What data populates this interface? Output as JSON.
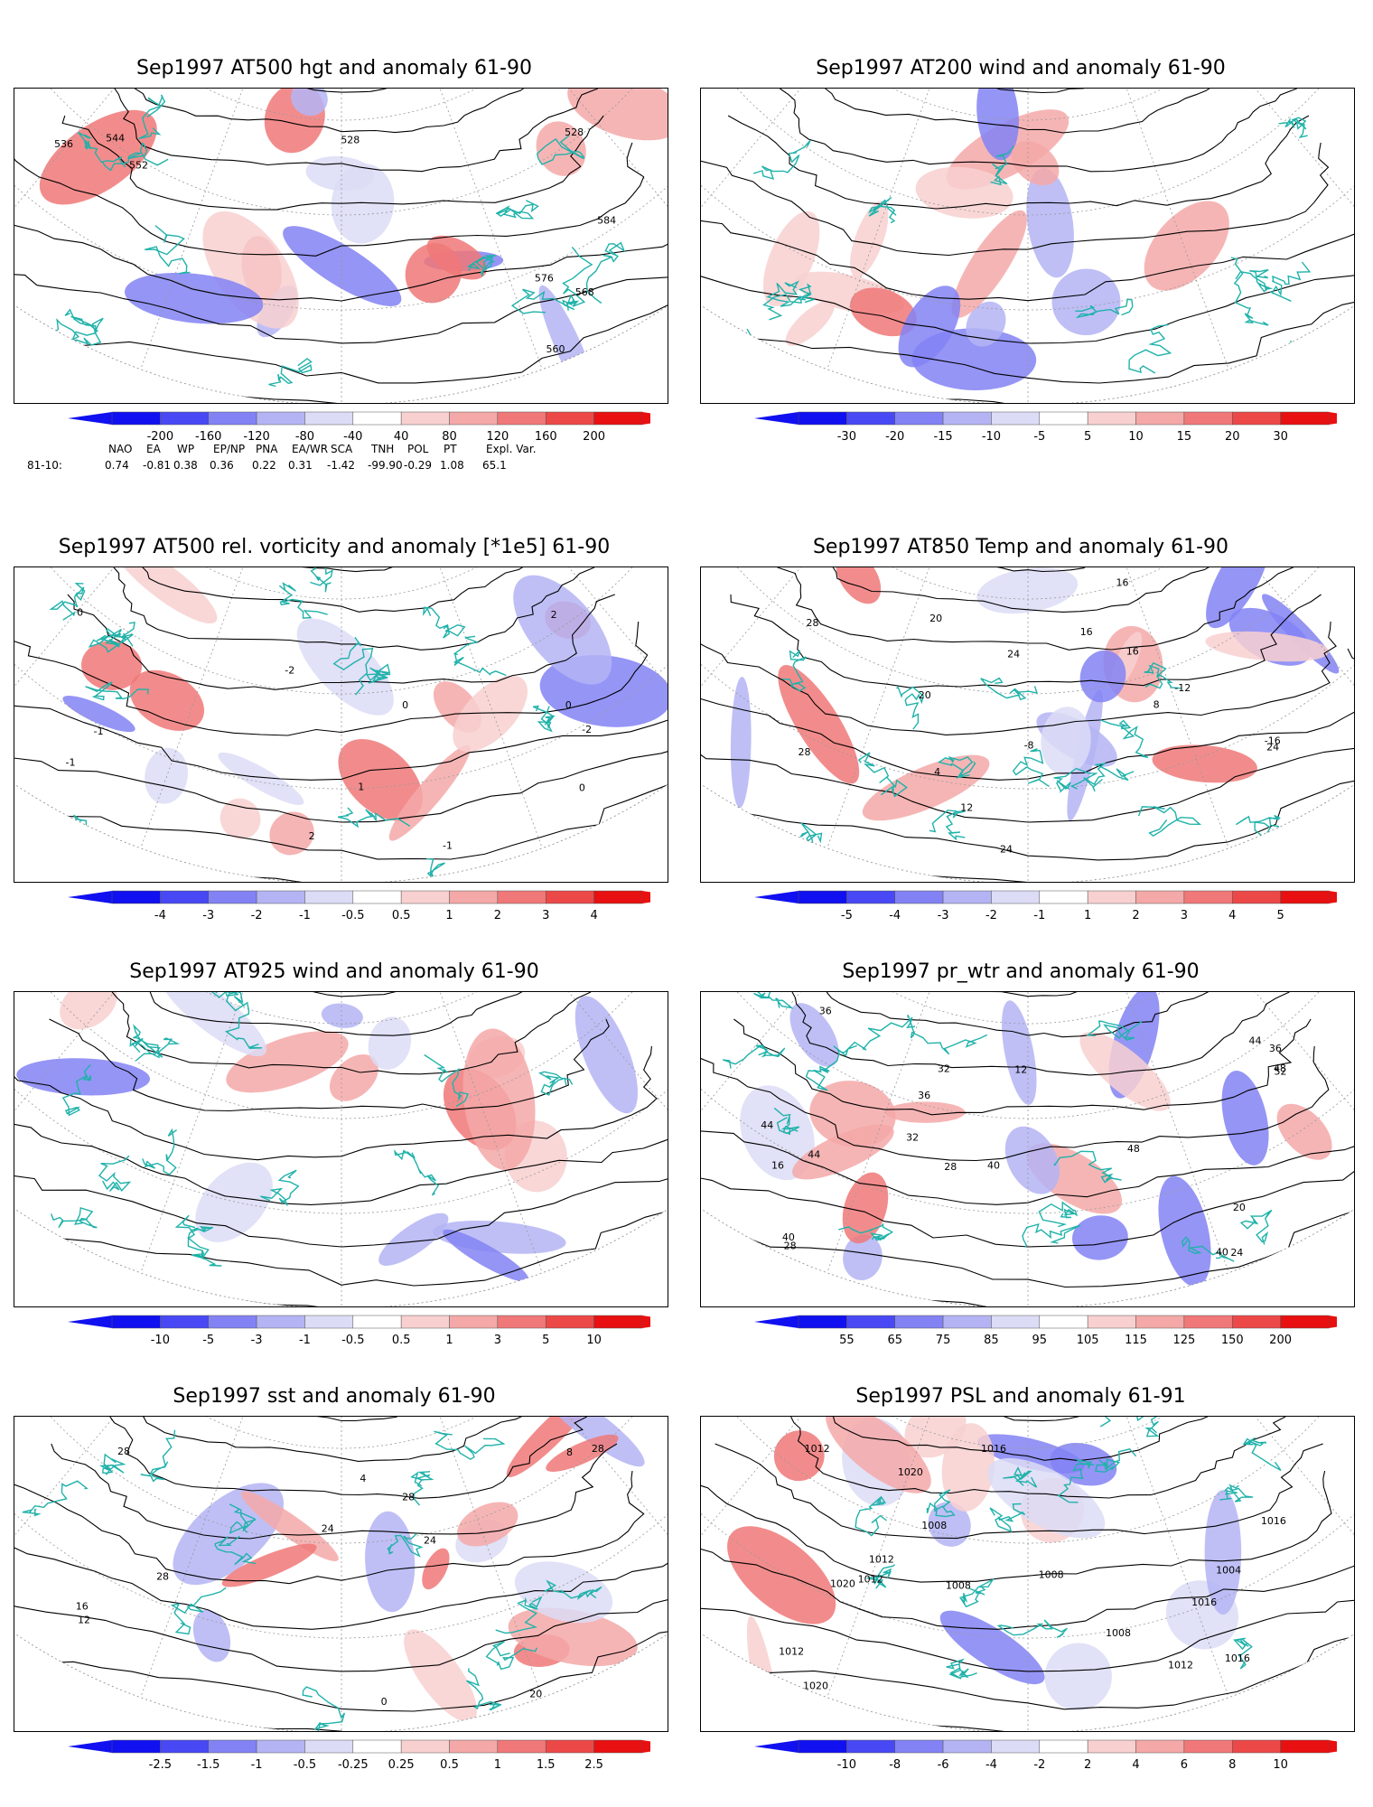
{
  "panels": [
    {
      "title": "Sep1997 AT500 hgt and anomaly 61-90",
      "colorbar": [
        "-200",
        "-160",
        "-120",
        "-80",
        "-40",
        "40",
        "80",
        "120",
        "160",
        "200"
      ],
      "contour_labels": [
        "528",
        "528",
        "536",
        "544",
        "552",
        "560",
        "568",
        "576",
        "584"
      ]
    },
    {
      "title": "Sep1997 AT200 wind and anomaly 61-90",
      "colorbar": [
        "-30",
        "-20",
        "-15",
        "-10",
        "-5",
        "5",
        "10",
        "15",
        "20",
        "30"
      ],
      "contour_labels": []
    },
    {
      "title": "Sep1997 AT500 rel. vorticity and anomaly [*1e5] 61-90",
      "colorbar": [
        "-4",
        "-3",
        "-2",
        "-1",
        "-0.5",
        "0.5",
        "1",
        "2",
        "3",
        "4"
      ],
      "contour_labels": [
        "0",
        "-1",
        "-1",
        "0",
        "-2",
        "2",
        "0",
        "-1",
        "1",
        "2",
        "-2",
        "0"
      ]
    },
    {
      "title": "Sep1997 AT850 Temp and anomaly 61-90",
      "colorbar": [
        "-5",
        "-4",
        "-3",
        "-2",
        "-1",
        "1",
        "2",
        "3",
        "4",
        "5"
      ],
      "contour_labels": [
        "-16",
        "-12",
        "-8",
        "4",
        "8",
        "12",
        "16",
        "20",
        "24",
        "28",
        "28",
        "24",
        "24",
        "20",
        "16",
        "16"
      ]
    },
    {
      "title": "Sep1997 AT925 wind and anomaly 61-90",
      "colorbar": [
        "-10",
        "-5",
        "-3",
        "-1",
        "-0.5",
        "0.5",
        "1",
        "3",
        "5",
        "10"
      ],
      "contour_labels": []
    },
    {
      "title": "Sep1997 pr_wtr and anomaly 61-90",
      "colorbar": [
        "55",
        "65",
        "75",
        "85",
        "95",
        "105",
        "115",
        "125",
        "150",
        "200"
      ],
      "contour_labels": [
        "52",
        "48",
        "44",
        "40",
        "36",
        "32",
        "28",
        "24",
        "20",
        "16",
        "12",
        "44",
        "40",
        "36",
        "32",
        "28",
        "48",
        "44",
        "40",
        "36"
      ]
    },
    {
      "title": "Sep1997 sst and anomaly 61-90",
      "colorbar": [
        "-2.5",
        "-1.5",
        "-1",
        "-0.5",
        "-0.25",
        "0.25",
        "0.5",
        "1",
        "1.5",
        "2.5"
      ],
      "contour_labels": [
        "28",
        "16",
        "12",
        "8",
        "4",
        "0",
        "20",
        "24",
        "24",
        "28",
        "28",
        "28"
      ]
    },
    {
      "title": "Sep1997 PSL and anomaly 61-91",
      "colorbar": [
        "-10",
        "-8",
        "-6",
        "-4",
        "-2",
        "2",
        "4",
        "6",
        "8",
        "10"
      ],
      "contour_labels": [
        "1012",
        "1008",
        "1016",
        "1004",
        "1008",
        "1012",
        "1016",
        "1020",
        "1016",
        "1020",
        "1012",
        "1008",
        "1012",
        "1016",
        "1012",
        "1020",
        "1008"
      ]
    }
  ],
  "teleconnection": {
    "row_label": "81-10:",
    "headers": [
      "NAO",
      "EA",
      "WP",
      "EP/NP",
      "PNA",
      "EA/WR",
      "SCA",
      "TNH",
      "POL",
      "PT",
      "Expl. Var."
    ],
    "values": [
      "0.74",
      "-0.81",
      "0.38",
      "0.36",
      "0.22",
      "0.31",
      "-1.42",
      "-99.90",
      "-0.29",
      "1.08",
      "65.1"
    ]
  },
  "colors": {
    "coast": "#20b2aa",
    "contour": "#000000",
    "scale": [
      "#1010f0",
      "#4848f4",
      "#8282f4",
      "#b4b4f4",
      "#dcdcf6",
      "#ffffff",
      "#f8d0d0",
      "#f4a8a8",
      "#f07878",
      "#ec4848",
      "#e81010"
    ]
  }
}
